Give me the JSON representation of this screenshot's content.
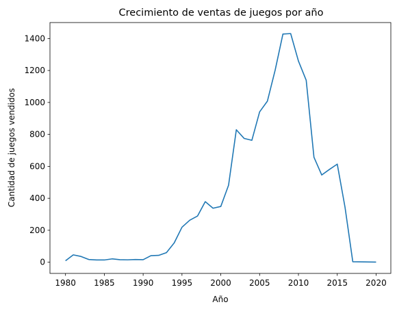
{
  "chart_data": {
    "type": "line",
    "title": "Crecimiento de ventas de juegos por año",
    "xlabel": "Año",
    "ylabel": "Cantidad de juegos vendidos",
    "xlim": [
      1978,
      2021.9
    ],
    "ylim": [
      -70,
      1500
    ],
    "xticks": [
      1980,
      1985,
      1990,
      1995,
      2000,
      2005,
      2010,
      2015,
      2020
    ],
    "yticks": [
      0,
      200,
      400,
      600,
      800,
      1000,
      1200,
      1400
    ],
    "grid": false,
    "line_color": "#1f77b4",
    "series": [
      {
        "x": [
          1980,
          1981,
          1982,
          1983,
          1984,
          1985,
          1986,
          1987,
          1988,
          1989,
          1990,
          1991,
          1992,
          1993,
          1994,
          1995,
          1996,
          1997,
          1998,
          1999,
          2000,
          2001,
          2002,
          2003,
          2004,
          2005,
          2006,
          2007,
          2008,
          2009,
          2010,
          2011,
          2012,
          2013,
          2014,
          2015,
          2016,
          2017,
          2020
        ],
        "values": [
          9,
          46,
          36,
          17,
          14,
          14,
          21,
          16,
          15,
          17,
          16,
          41,
          43,
          60,
          121,
          219,
          263,
          289,
          379,
          338,
          349,
          482,
          829,
          775,
          763,
          941,
          1008,
          1202,
          1428,
          1431,
          1259,
          1139,
          657,
          546,
          581,
          614,
          344,
          3,
          1
        ]
      }
    ]
  }
}
